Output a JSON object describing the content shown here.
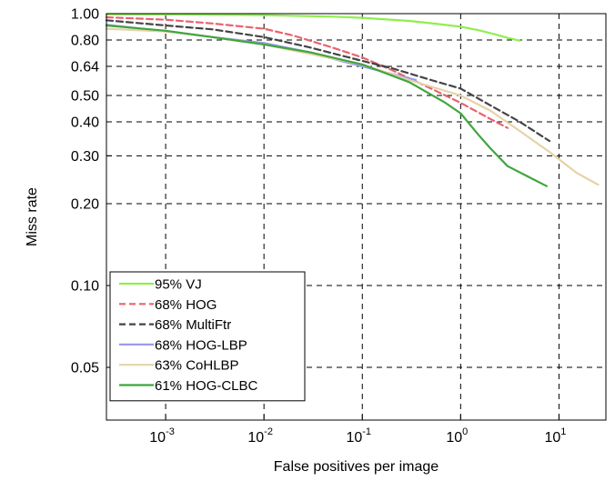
{
  "chart_data": {
    "type": "line",
    "title": "",
    "xlabel": "False positives per image",
    "ylabel": "Miss rate",
    "xscale": "log",
    "yscale": "log",
    "xlim": [
      0.00025,
      30
    ],
    "ylim": [
      0.032,
      1.0
    ],
    "grid": true,
    "legend_position": "bottom-left",
    "x_ticks": [
      {
        "value": 0.001,
        "base": "10",
        "exp": "-3"
      },
      {
        "value": 0.01,
        "base": "10",
        "exp": "-2"
      },
      {
        "value": 0.1,
        "base": "10",
        "exp": "-1"
      },
      {
        "value": 1,
        "base": "10",
        "exp": "0"
      },
      {
        "value": 10,
        "base": "10",
        "exp": "1"
      }
    ],
    "y_ticks": [
      {
        "value": 0.05,
        "label": "0.05"
      },
      {
        "value": 0.1,
        "label": "0.10"
      },
      {
        "value": 0.2,
        "label": "0.20"
      },
      {
        "value": 0.3,
        "label": "0.30"
      },
      {
        "value": 0.4,
        "label": "0.40"
      },
      {
        "value": 0.5,
        "label": "0.50"
      },
      {
        "value": 0.64,
        "label": "0.64"
      },
      {
        "value": 0.8,
        "label": "0.80"
      },
      {
        "value": 1.0,
        "label": "1.00"
      }
    ],
    "series": [
      {
        "name": "95% VJ",
        "color": "#90ee50",
        "dash": "solid",
        "x": [
          0.00025,
          0.001,
          0.01,
          0.05,
          0.1,
          0.3,
          0.6,
          1.0,
          1.5,
          2.2,
          3.0,
          4.0
        ],
        "y": [
          0.995,
          0.993,
          0.988,
          0.975,
          0.965,
          0.94,
          0.915,
          0.895,
          0.87,
          0.84,
          0.815,
          0.795
        ]
      },
      {
        "name": "68% HOG",
        "color": "#e8636e",
        "dash": "dashed",
        "x": [
          0.00025,
          0.001,
          0.003,
          0.01,
          0.02,
          0.05,
          0.1,
          0.2,
          0.5,
          1.0,
          2.0,
          3.0
        ],
        "y": [
          0.97,
          0.95,
          0.92,
          0.88,
          0.83,
          0.75,
          0.69,
          0.62,
          0.53,
          0.47,
          0.41,
          0.38
        ]
      },
      {
        "name": "68% MultiFtr",
        "color": "#444444",
        "dash": "dashed",
        "x": [
          0.00025,
          0.001,
          0.003,
          0.01,
          0.03,
          0.1,
          0.2,
          0.5,
          1.0,
          2.0,
          4.0,
          8.0
        ],
        "y": [
          0.945,
          0.905,
          0.875,
          0.82,
          0.75,
          0.67,
          0.63,
          0.57,
          0.53,
          0.46,
          0.4,
          0.34
        ]
      },
      {
        "name": "68% HOG-LBP",
        "color": "#9b9be8",
        "dash": "solid",
        "x": [
          0.00025,
          0.001,
          0.003,
          0.01,
          0.03,
          0.06,
          0.1,
          0.2,
          0.35
        ],
        "y": [
          0.91,
          0.86,
          0.82,
          0.78,
          0.72,
          0.67,
          0.64,
          0.6,
          0.57
        ]
      },
      {
        "name": "63% CoHLBP",
        "color": "#e6d2a8",
        "dash": "solid",
        "x": [
          0.00025,
          0.001,
          0.003,
          0.01,
          0.03,
          0.1,
          0.3,
          1.0,
          2.0,
          4.0,
          8.0,
          15.0,
          25.0
        ],
        "y": [
          0.88,
          0.86,
          0.82,
          0.77,
          0.71,
          0.65,
          0.57,
          0.5,
          0.44,
          0.37,
          0.31,
          0.26,
          0.235
        ]
      },
      {
        "name": "61% HOG-CLBC",
        "color": "#3ea63e",
        "dash": "solid",
        "x": [
          0.00025,
          0.001,
          0.003,
          0.01,
          0.03,
          0.1,
          0.3,
          0.7,
          1.0,
          1.5,
          2.0,
          3.0,
          5.0,
          7.5
        ],
        "y": [
          0.905,
          0.865,
          0.82,
          0.77,
          0.72,
          0.65,
          0.56,
          0.47,
          0.43,
          0.36,
          0.32,
          0.275,
          0.25,
          0.232
        ]
      }
    ]
  }
}
